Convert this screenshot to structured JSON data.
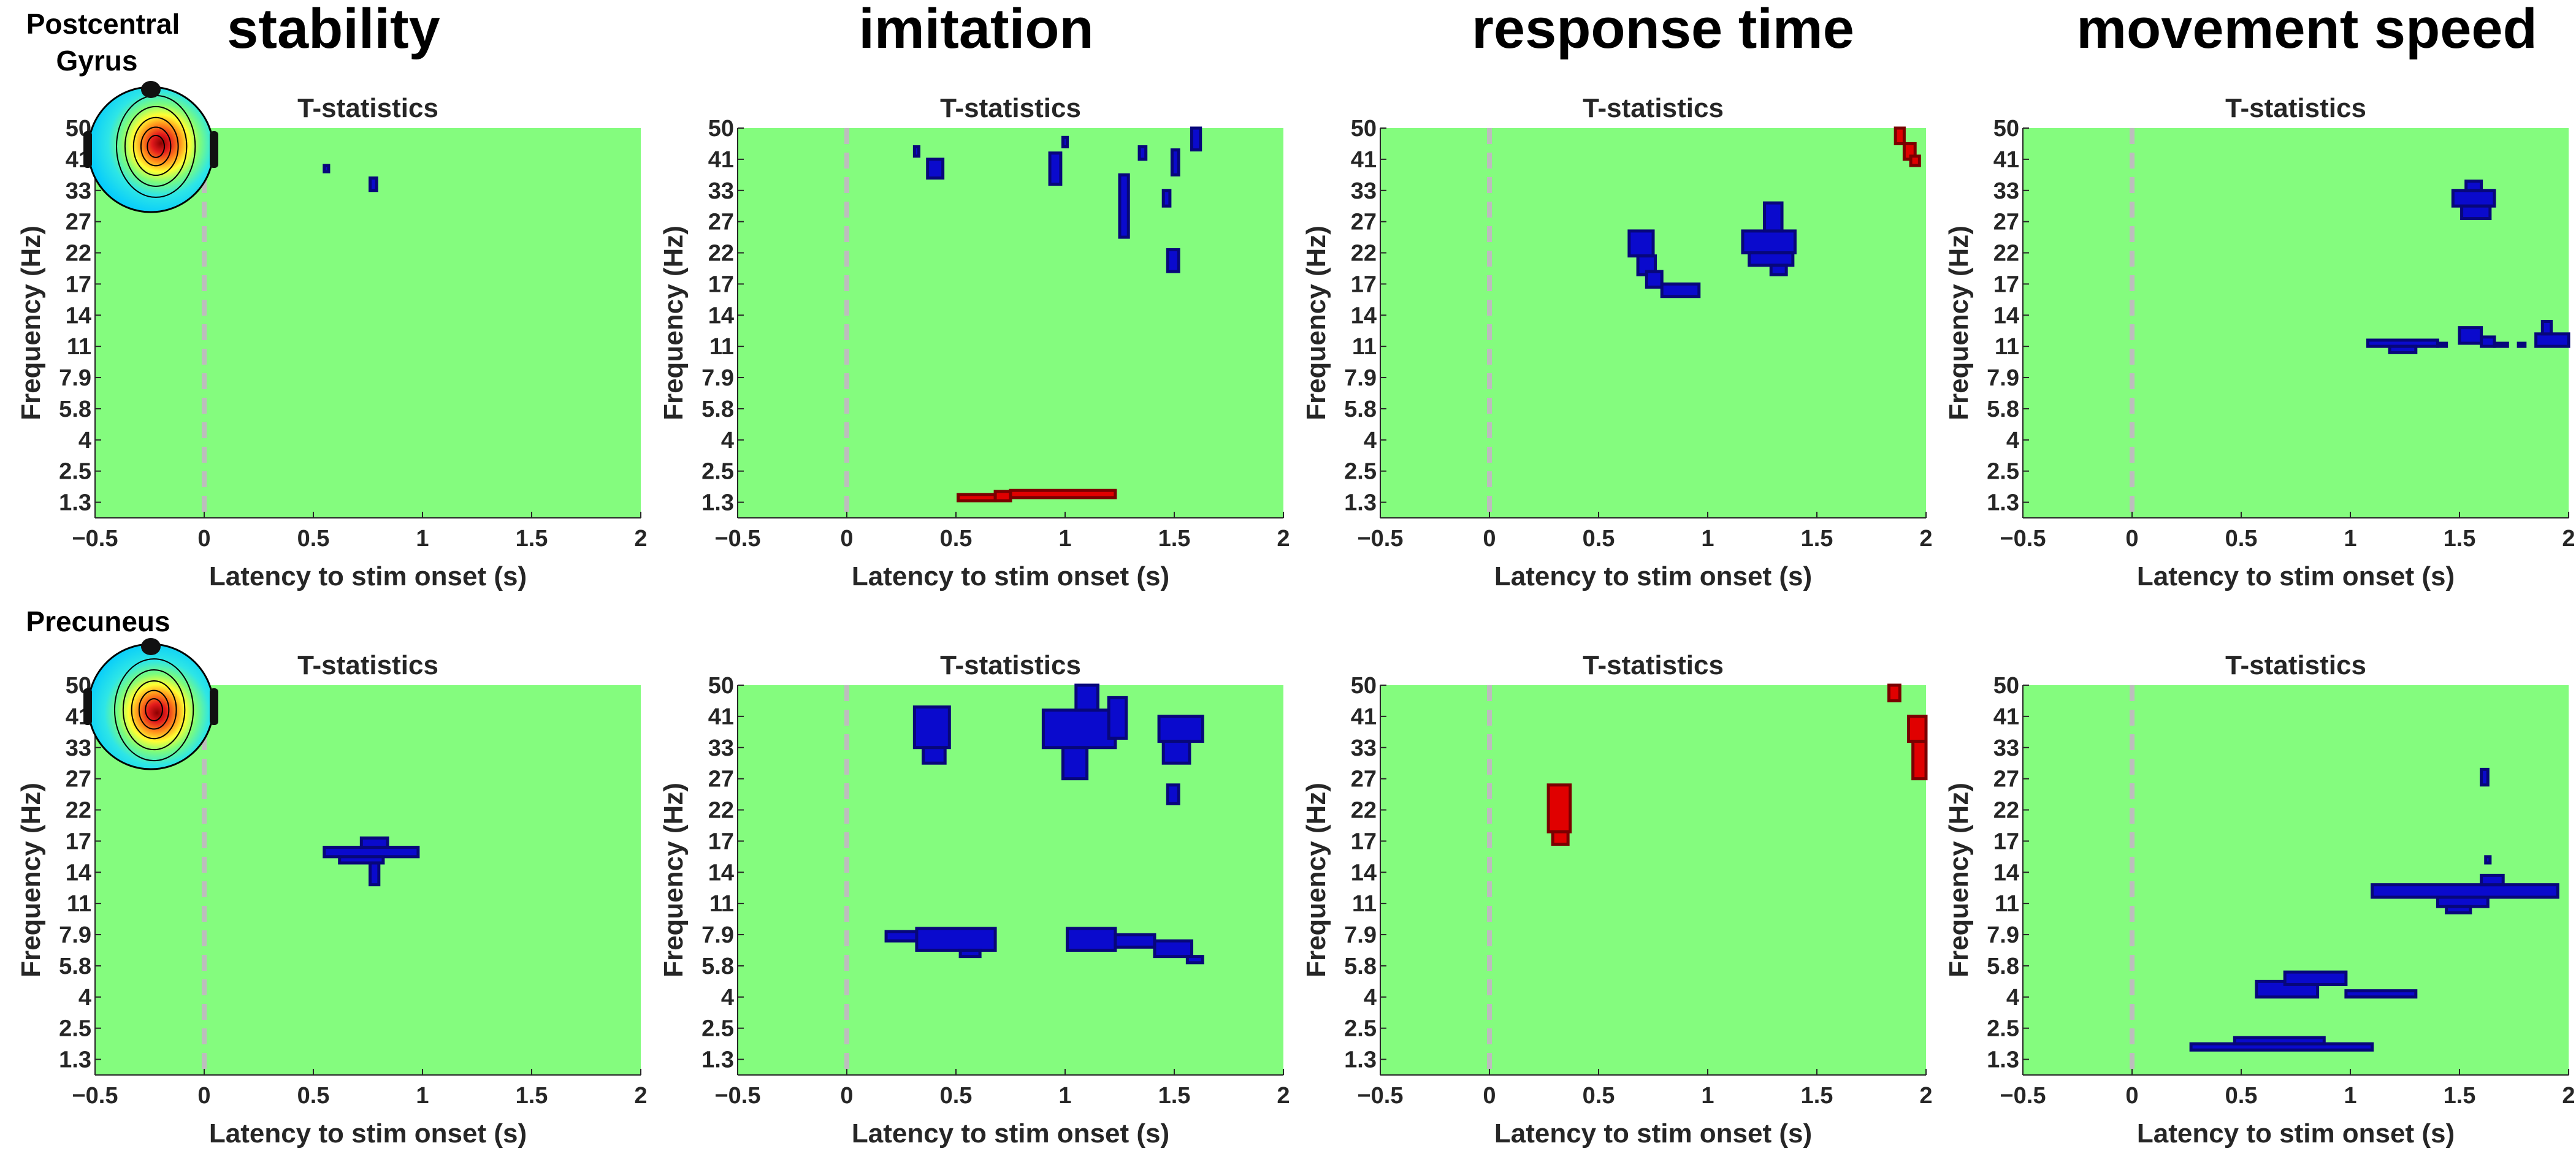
{
  "figure": {
    "column_titles": [
      "stability",
      "imitation",
      "response time",
      "movement speed"
    ],
    "row_labels": [
      [
        "Postcentral",
        "Gyrus"
      ],
      [
        "Precuneus"
      ]
    ]
  },
  "colors": {
    "background": "#84FC7E",
    "negative": "#0A0ACD",
    "negative_dark": "#07077A",
    "positive": "#E00000",
    "positive_dark": "#7A0000",
    "stim_line": "#BDBDBD",
    "axis": "#262626"
  },
  "chart_data": [
    {
      "type": "heatmap",
      "row": 0,
      "col": 0,
      "title": "T-statistics",
      "xlabel": "Latency to stim onset (s)",
      "ylabel": "Frequency (Hz)",
      "xlim": [
        -0.5,
        2
      ],
      "xticks": [
        -0.5,
        0,
        0.5,
        1,
        1.5,
        2
      ],
      "yticks": [
        "1.3",
        "2.5",
        "4",
        "5.8",
        "7.9",
        "11",
        "14",
        "17",
        "22",
        "27",
        "33",
        "41",
        "50"
      ],
      "stim_onset": 0,
      "has_topomap": true,
      "clusters": [
        {
          "sign": "neg",
          "cells": [
            [
              0.55,
              10.6,
              0.57,
              10.8
            ],
            [
              0.76,
              10.0,
              0.79,
              10.4
            ]
          ]
        }
      ]
    },
    {
      "type": "heatmap",
      "row": 0,
      "col": 1,
      "title": "T-statistics",
      "xlabel": "Latency to stim onset (s)",
      "ylabel": "Frequency (Hz)",
      "xlim": [
        -0.5,
        2
      ],
      "xticks": [
        -0.5,
        0,
        0.5,
        1,
        1.5,
        2
      ],
      "yticks": [
        "1.3",
        "2.5",
        "4",
        "5.8",
        "7.9",
        "11",
        "14",
        "17",
        "22",
        "27",
        "33",
        "41",
        "50"
      ],
      "stim_onset": 0,
      "clusters": [
        {
          "sign": "neg",
          "cells": [
            [
              0.31,
              11.1,
              0.33,
              11.4
            ],
            [
              0.37,
              10.4,
              0.44,
              11.0
            ],
            [
              0.93,
              10.2,
              0.98,
              11.2
            ],
            [
              0.99,
              11.4,
              1.01,
              11.7
            ],
            [
              1.25,
              8.5,
              1.29,
              10.5
            ],
            [
              1.34,
              11.0,
              1.37,
              11.4
            ],
            [
              1.45,
              9.5,
              1.48,
              10.0
            ],
            [
              1.47,
              7.4,
              1.52,
              8.1
            ],
            [
              1.49,
              10.5,
              1.52,
              11.3
            ],
            [
              1.58,
              11.3,
              1.62,
              12.0
            ]
          ]
        },
        {
          "sign": "pos",
          "cells": [
            [
              0.51,
              0.05,
              0.68,
              0.25
            ],
            [
              0.68,
              0.05,
              0.75,
              0.35
            ],
            [
              0.75,
              0.15,
              1.23,
              0.38
            ]
          ]
        }
      ]
    },
    {
      "type": "heatmap",
      "row": 0,
      "col": 2,
      "title": "T-statistics",
      "xlabel": "Latency to stim onset (s)",
      "ylabel": "Frequency (Hz)",
      "xlim": [
        -0.5,
        2
      ],
      "xticks": [
        -0.5,
        0,
        0.5,
        1,
        1.5,
        2
      ],
      "yticks": [
        "1.3",
        "2.5",
        "4",
        "5.8",
        "7.9",
        "11",
        "14",
        "17",
        "22",
        "27",
        "33",
        "41",
        "50"
      ],
      "stim_onset": 0,
      "clusters": [
        {
          "sign": "neg",
          "cells": [
            [
              0.64,
              7.9,
              0.75,
              8.7
            ],
            [
              0.68,
              7.3,
              0.76,
              7.9
            ],
            [
              0.72,
              6.9,
              0.79,
              7.4
            ],
            [
              0.79,
              6.6,
              0.96,
              7.0
            ],
            [
              1.16,
              8.0,
              1.4,
              8.7
            ],
            [
              1.19,
              7.6,
              1.39,
              8.0
            ],
            [
              1.26,
              8.7,
              1.34,
              9.6
            ],
            [
              1.29,
              7.3,
              1.36,
              7.6
            ]
          ]
        },
        {
          "sign": "pos",
          "cells": [
            [
              1.86,
              11.5,
              1.9,
              12.0
            ],
            [
              1.9,
              11.0,
              1.95,
              11.5
            ],
            [
              1.93,
              10.8,
              1.97,
              11.1
            ]
          ]
        }
      ]
    },
    {
      "type": "heatmap",
      "row": 0,
      "col": 3,
      "title": "T-statistics",
      "xlabel": "Latency to stim onset (s)",
      "ylabel": "Frequency (Hz)",
      "xlim": [
        -0.5,
        2
      ],
      "xticks": [
        -0.5,
        0,
        0.5,
        1,
        1.5,
        2
      ],
      "yticks": [
        "1.3",
        "2.5",
        "4",
        "5.8",
        "7.9",
        "11",
        "14",
        "17",
        "22",
        "27",
        "33",
        "41",
        "50"
      ],
      "stim_onset": 0,
      "clusters": [
        {
          "sign": "neg",
          "cells": [
            [
              1.47,
              9.5,
              1.66,
              10.0
            ],
            [
              1.51,
              9.1,
              1.64,
              9.5
            ],
            [
              1.53,
              10.0,
              1.6,
              10.3
            ],
            [
              1.08,
              5.0,
              1.4,
              5.2
            ],
            [
              1.18,
              4.8,
              1.3,
              5.0
            ],
            [
              1.4,
              5.0,
              1.44,
              5.1
            ],
            [
              1.5,
              5.1,
              1.6,
              5.6
            ],
            [
              1.6,
              5.0,
              1.66,
              5.3
            ],
            [
              1.66,
              5.0,
              1.72,
              5.1
            ],
            [
              1.77,
              5.0,
              1.8,
              5.1
            ],
            [
              1.85,
              5.0,
              2.0,
              5.4
            ],
            [
              1.88,
              5.4,
              1.92,
              5.8
            ]
          ]
        }
      ]
    },
    {
      "type": "heatmap",
      "row": 1,
      "col": 0,
      "title": "T-statistics",
      "xlabel": "Latency to stim onset (s)",
      "ylabel": "Frequency (Hz)",
      "xlim": [
        -0.5,
        2
      ],
      "xticks": [
        -0.5,
        0,
        0.5,
        1,
        1.5,
        2
      ],
      "yticks": [
        "1.3",
        "2.5",
        "4",
        "5.8",
        "7.9",
        "11",
        "14",
        "17",
        "22",
        "27",
        "33",
        "41",
        "50"
      ],
      "stim_onset": 0,
      "has_topomap": true,
      "clusters": [
        {
          "sign": "neg",
          "cells": [
            [
              0.55,
              6.5,
              0.98,
              6.8
            ],
            [
              0.62,
              6.3,
              0.82,
              6.5
            ],
            [
              0.72,
              6.8,
              0.84,
              7.1
            ],
            [
              0.76,
              5.6,
              0.8,
              6.3
            ]
          ]
        }
      ]
    },
    {
      "type": "heatmap",
      "row": 1,
      "col": 1,
      "title": "T-statistics",
      "xlabel": "Latency to stim onset (s)",
      "ylabel": "Frequency (Hz)",
      "xlim": [
        -0.5,
        2
      ],
      "xticks": [
        -0.5,
        0,
        0.5,
        1,
        1.5,
        2
      ],
      "yticks": [
        "1.3",
        "2.5",
        "4",
        "5.8",
        "7.9",
        "11",
        "14",
        "17",
        "22",
        "27",
        "33",
        "41",
        "50"
      ],
      "stim_onset": 0,
      "clusters": [
        {
          "sign": "neg",
          "cells": [
            [
              0.31,
              10.0,
              0.47,
              11.3
            ],
            [
              0.35,
              9.5,
              0.45,
              10.0
            ],
            [
              0.9,
              10.0,
              1.23,
              11.2
            ],
            [
              0.99,
              9.0,
              1.1,
              10.0
            ],
            [
              1.05,
              11.2,
              1.15,
              12.0
            ],
            [
              1.2,
              10.3,
              1.28,
              11.6
            ],
            [
              1.43,
              10.2,
              1.63,
              11.0
            ],
            [
              1.45,
              9.5,
              1.57,
              10.2
            ],
            [
              1.47,
              8.2,
              1.52,
              8.8
            ],
            [
              0.18,
              3.8,
              0.32,
              4.1
            ],
            [
              0.32,
              3.5,
              0.68,
              4.2
            ],
            [
              0.52,
              3.3,
              0.61,
              3.5
            ],
            [
              1.01,
              3.5,
              1.23,
              4.2
            ],
            [
              1.23,
              3.6,
              1.41,
              4.0
            ],
            [
              1.41,
              3.3,
              1.58,
              3.8
            ],
            [
              1.56,
              3.1,
              1.63,
              3.3
            ]
          ]
        }
      ]
    },
    {
      "type": "heatmap",
      "row": 1,
      "col": 2,
      "title": "T-statistics",
      "xlabel": "Latency to stim onset (s)",
      "ylabel": "Frequency (Hz)",
      "xlim": [
        -0.5,
        2
      ],
      "xticks": [
        -0.5,
        0,
        0.5,
        1,
        1.5,
        2
      ],
      "yticks": [
        "1.3",
        "2.5",
        "4",
        "5.8",
        "7.9",
        "11",
        "14",
        "17",
        "22",
        "27",
        "33",
        "41",
        "50"
      ],
      "stim_onset": 0,
      "clusters": [
        {
          "sign": "pos",
          "cells": [
            [
              0.27,
              7.3,
              0.37,
              8.8
            ],
            [
              0.29,
              6.9,
              0.36,
              7.3
            ],
            [
              1.83,
              11.5,
              1.88,
              12.0
            ],
            [
              1.92,
              10.2,
              2.0,
              11.0
            ],
            [
              1.94,
              9.0,
              2.0,
              10.2
            ]
          ]
        }
      ]
    },
    {
      "type": "heatmap",
      "row": 1,
      "col": 3,
      "title": "T-statistics",
      "xlabel": "Latency to stim onset (s)",
      "ylabel": "Frequency (Hz)",
      "xlim": [
        -0.5,
        2
      ],
      "xticks": [
        -0.5,
        0,
        0.5,
        1,
        1.5,
        2
      ],
      "yticks": [
        "1.3",
        "2.5",
        "4",
        "5.8",
        "7.9",
        "11",
        "14",
        "17",
        "22",
        "27",
        "33",
        "41",
        "50"
      ],
      "stim_onset": 0,
      "clusters": [
        {
          "sign": "neg",
          "cells": [
            [
              1.6,
              8.8,
              1.63,
              9.3
            ],
            [
              1.62,
              6.3,
              1.64,
              6.5
            ],
            [
              1.1,
              5.2,
              1.95,
              5.6
            ],
            [
              1.4,
              4.9,
              1.63,
              5.2
            ],
            [
              1.6,
              5.6,
              1.7,
              5.9
            ],
            [
              1.44,
              4.7,
              1.55,
              4.9
            ],
            [
              0.57,
              2.0,
              0.85,
              2.5
            ],
            [
              0.7,
              2.4,
              0.98,
              2.8
            ],
            [
              0.98,
              2.0,
              1.3,
              2.2
            ],
            [
              0.27,
              0.3,
              1.1,
              0.5
            ],
            [
              0.47,
              0.5,
              0.88,
              0.7
            ]
          ]
        }
      ]
    }
  ]
}
